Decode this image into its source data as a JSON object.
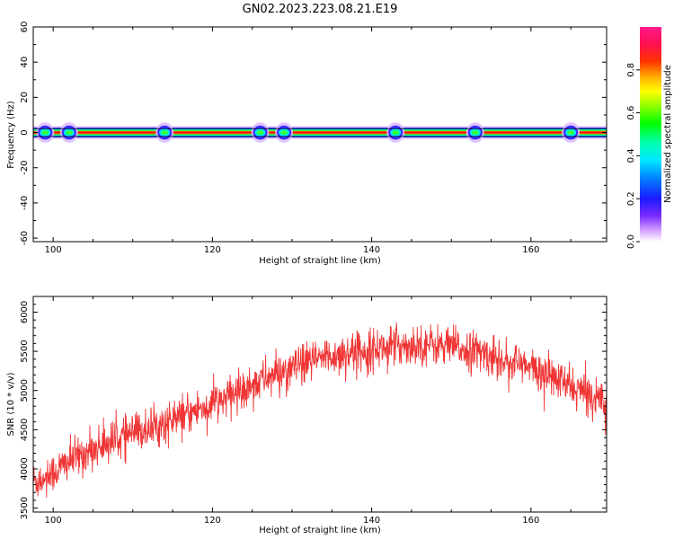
{
  "title": "GN02.2023.223.08.21.E19",
  "colors": {
    "snr_line": "#f03535",
    "axes": "#000000",
    "background": "#ffffff"
  },
  "chart_data": [
    {
      "type": "heatmap",
      "name": "spectrogram",
      "xlabel": "Height of straight line (km)",
      "ylabel": "Frequency (Hz)",
      "xlim": [
        97.5,
        169.5
      ],
      "ylim": [
        -62,
        60
      ],
      "xticks": [
        100,
        120,
        140,
        160
      ],
      "yticks": [
        -60,
        -40,
        -20,
        0,
        20,
        40,
        60
      ],
      "colorbar": {
        "label": "Normalized spectral amplitude",
        "range": [
          0,
          1
        ],
        "ticks": [
          "0.0",
          "0.2",
          "0.4",
          "0.6",
          "0.8"
        ],
        "colormap": "gist_ncar-like (white, violet, blue, cyan, green, yellow, orange, red, pink)"
      },
      "description_band": {
        "center_frequency_hz": 0,
        "half_width_hz": 2,
        "peak_amplitude": 0.85,
        "wider_blobs_at_km": [
          99,
          102,
          114,
          126,
          129,
          143,
          153,
          165
        ]
      }
    },
    {
      "type": "line",
      "name": "snr",
      "xlabel": "Height of straight line (km)",
      "ylabel": "SNR (10 * v/v)",
      "xlim": [
        97.5,
        169.5
      ],
      "ylim": [
        3450,
        6200
      ],
      "xticks": [
        100,
        120,
        140,
        160
      ],
      "yticks": [
        3500,
        4000,
        4500,
        5000,
        5500,
        6000
      ],
      "series": [
        {
          "x": [
            98,
            100,
            102,
            104,
            106,
            108,
            110,
            112,
            114,
            116,
            118,
            120,
            122,
            124,
            126,
            128,
            130,
            132,
            134,
            136,
            138,
            140,
            142,
            144,
            146,
            148,
            150,
            152,
            154,
            156,
            158,
            160,
            162,
            164,
            166,
            168,
            169.5
          ],
          "y": [
            3850,
            3950,
            4100,
            4200,
            4300,
            4380,
            4450,
            4520,
            4580,
            4650,
            4750,
            4830,
            4920,
            5030,
            5130,
            5200,
            5280,
            5350,
            5420,
            5460,
            5500,
            5530,
            5560,
            5580,
            5590,
            5580,
            5560,
            5520,
            5470,
            5410,
            5350,
            5280,
            5200,
            5100,
            5000,
            4920,
            4900
          ],
          "noise_amplitude": 170
        }
      ]
    }
  ]
}
